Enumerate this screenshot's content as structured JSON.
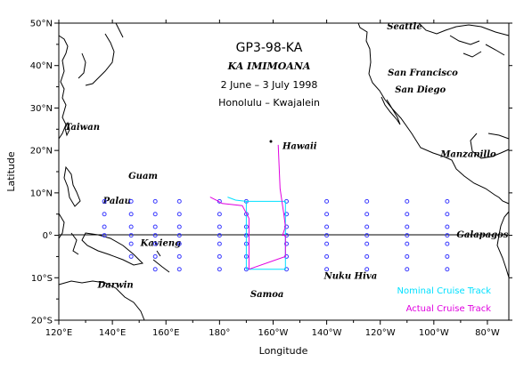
{
  "title": {
    "cruise_id": "GP3-98-KA",
    "ship": "KA IMIMOANA",
    "dates": "2 June – 3 July 1998",
    "route": "Honolulu – Kwajalein"
  },
  "axes": {
    "xlabel": "Longitude",
    "ylabel": "Latitude",
    "lon_ticks": [
      {
        "lon": 120,
        "label": "120°E"
      },
      {
        "lon": 140,
        "label": "140°E"
      },
      {
        "lon": 160,
        "label": "160°E"
      },
      {
        "lon": 180,
        "label": "180°"
      },
      {
        "lon": 200,
        "label": "160°W"
      },
      {
        "lon": 220,
        "label": "140°W"
      },
      {
        "lon": 240,
        "label": "120°W"
      },
      {
        "lon": 260,
        "label": "100°W"
      },
      {
        "lon": 280,
        "label": "80°W"
      }
    ],
    "lat_ticks": [
      {
        "lat": 50,
        "label": "50°N"
      },
      {
        "lat": 40,
        "label": "40°N"
      },
      {
        "lat": 30,
        "label": "30°N"
      },
      {
        "lat": 20,
        "label": "20°N"
      },
      {
        "lat": 10,
        "label": "10°N"
      },
      {
        "lat": 0,
        "label": "0°"
      },
      {
        "lat": -10,
        "label": "10°S"
      },
      {
        "lat": -20,
        "label": "20°S"
      }
    ],
    "lon_range": [
      120,
      288
    ],
    "lat_range": [
      -20,
      50
    ]
  },
  "places": [
    {
      "label": "Seattle",
      "lon": 242.5,
      "lat": 48.5
    },
    {
      "label": "San Francisco",
      "lon": 242.8,
      "lat": 37.6
    },
    {
      "label": "San Diego",
      "lon": 245.5,
      "lat": 33.7
    },
    {
      "label": "Taiwan",
      "lon": 122.3,
      "lat": 24.8
    },
    {
      "label": "Hawaii",
      "lon": 203.5,
      "lat": 20.3
    },
    {
      "label": "Manzanillo",
      "lon": 262.5,
      "lat": 18.5
    },
    {
      "label": "Guam",
      "lon": 146,
      "lat": 13.3
    },
    {
      "label": "Palau",
      "lon": 136.5,
      "lat": 7.5
    },
    {
      "label": "Kavieng",
      "lon": 150.5,
      "lat": -2.5
    },
    {
      "label": "Galapagos",
      "lon": 268.5,
      "lat": -0.5
    },
    {
      "label": "Darwin",
      "lon": 134.5,
      "lat": -12.4
    },
    {
      "label": "Samoa",
      "lon": 191.5,
      "lat": -14.5
    },
    {
      "label": "Nuku Hiva",
      "lon": 219,
      "lat": -10.3
    }
  ],
  "legend": {
    "nominal_label": "Nominal Cruise Track",
    "actual_label": "Actual Cruise Track",
    "nominal_color": "#00e0ff",
    "actual_color": "#e000e0"
  },
  "moorings": {
    "color": "#3838ff",
    "symbol": "open circle",
    "lons": [
      137,
      147,
      156,
      165,
      180,
      190,
      205,
      220,
      235,
      250,
      265
    ],
    "lats": [
      8,
      5,
      2,
      0,
      -2,
      -5,
      -8
    ]
  },
  "nominal_track": {
    "points": [
      [
        204.6,
        8
      ],
      [
        190,
        8
      ],
      [
        190,
        -8
      ],
      [
        204.6,
        -8
      ],
      [
        204.6,
        8
      ]
    ],
    "extra": [
      [
        190,
        8
      ],
      [
        186,
        8.3
      ],
      [
        183,
        9
      ]
    ]
  },
  "actual_track": {
    "points": [
      [
        201.9,
        21.3
      ],
      [
        202.6,
        11
      ],
      [
        204,
        5
      ],
      [
        204.6,
        2
      ],
      [
        203.5,
        0
      ],
      [
        204.6,
        0
      ],
      [
        204.6,
        -5
      ],
      [
        191,
        -8
      ],
      [
        191,
        4
      ],
      [
        188.5,
        7
      ],
      [
        181,
        7.5
      ],
      [
        179,
        8.2
      ],
      [
        176.5,
        9
      ]
    ]
  }
}
